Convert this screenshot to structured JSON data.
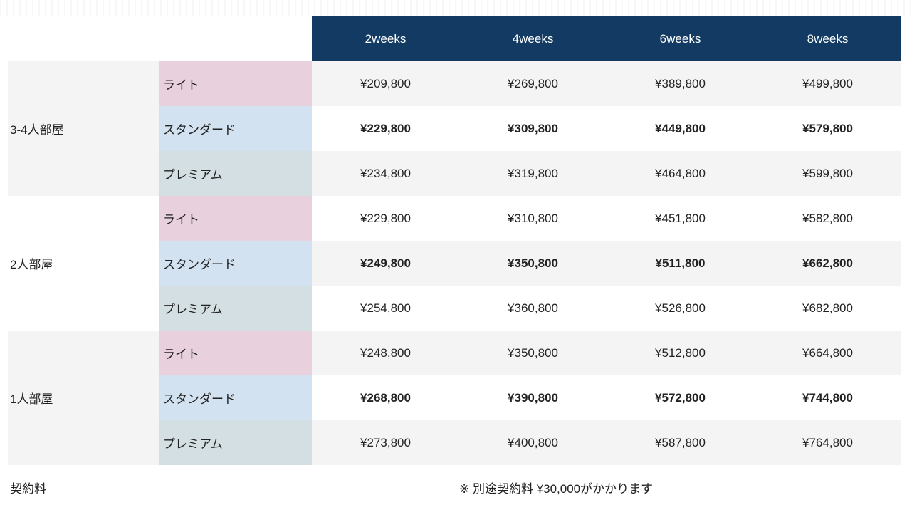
{
  "columns": [
    "2weeks",
    "4weeks",
    "6weeks",
    "8weeks"
  ],
  "groups": [
    {
      "room": "3-4人部屋",
      "rows": [
        {
          "plan": "ライト",
          "prices": [
            "¥209,800",
            "¥269,800",
            "¥389,800",
            "¥499,800"
          ]
        },
        {
          "plan": "スタンダード",
          "prices": [
            "¥229,800",
            "¥309,800",
            "¥449,800",
            "¥579,800"
          ]
        },
        {
          "plan": "プレミアム",
          "prices": [
            "¥234,800",
            "¥319,800",
            "¥464,800",
            "¥599,800"
          ]
        }
      ]
    },
    {
      "room": "2人部屋",
      "rows": [
        {
          "plan": "ライト",
          "prices": [
            "¥229,800",
            "¥310,800",
            "¥451,800",
            "¥582,800"
          ]
        },
        {
          "plan": "スタンダード",
          "prices": [
            "¥249,800",
            "¥350,800",
            "¥511,800",
            "¥662,800"
          ]
        },
        {
          "plan": "プレミアム",
          "prices": [
            "¥254,800",
            "¥360,800",
            "¥526,800",
            "¥682,800"
          ]
        }
      ]
    },
    {
      "room": "1人部屋",
      "rows": [
        {
          "plan": "ライト",
          "prices": [
            "¥248,800",
            "¥350,800",
            "¥512,800",
            "¥664,800"
          ]
        },
        {
          "plan": "スタンダード",
          "prices": [
            "¥268,800",
            "¥390,800",
            "¥572,800",
            "¥744,800"
          ]
        },
        {
          "plan": "プレミアム",
          "prices": [
            "¥273,800",
            "¥400,800",
            "¥587,800",
            "¥764,800"
          ]
        }
      ]
    }
  ],
  "footer": {
    "label": "契約料",
    "note": "※ 別途契約料 ¥30,000がかかります"
  },
  "colors": {
    "header_bg": "#123a63",
    "lite_bg": "#e8d1dd",
    "standard_bg": "#d2e2f0",
    "premium_bg": "#d3dfe2",
    "stripe_bg": "#f4f4f4"
  }
}
